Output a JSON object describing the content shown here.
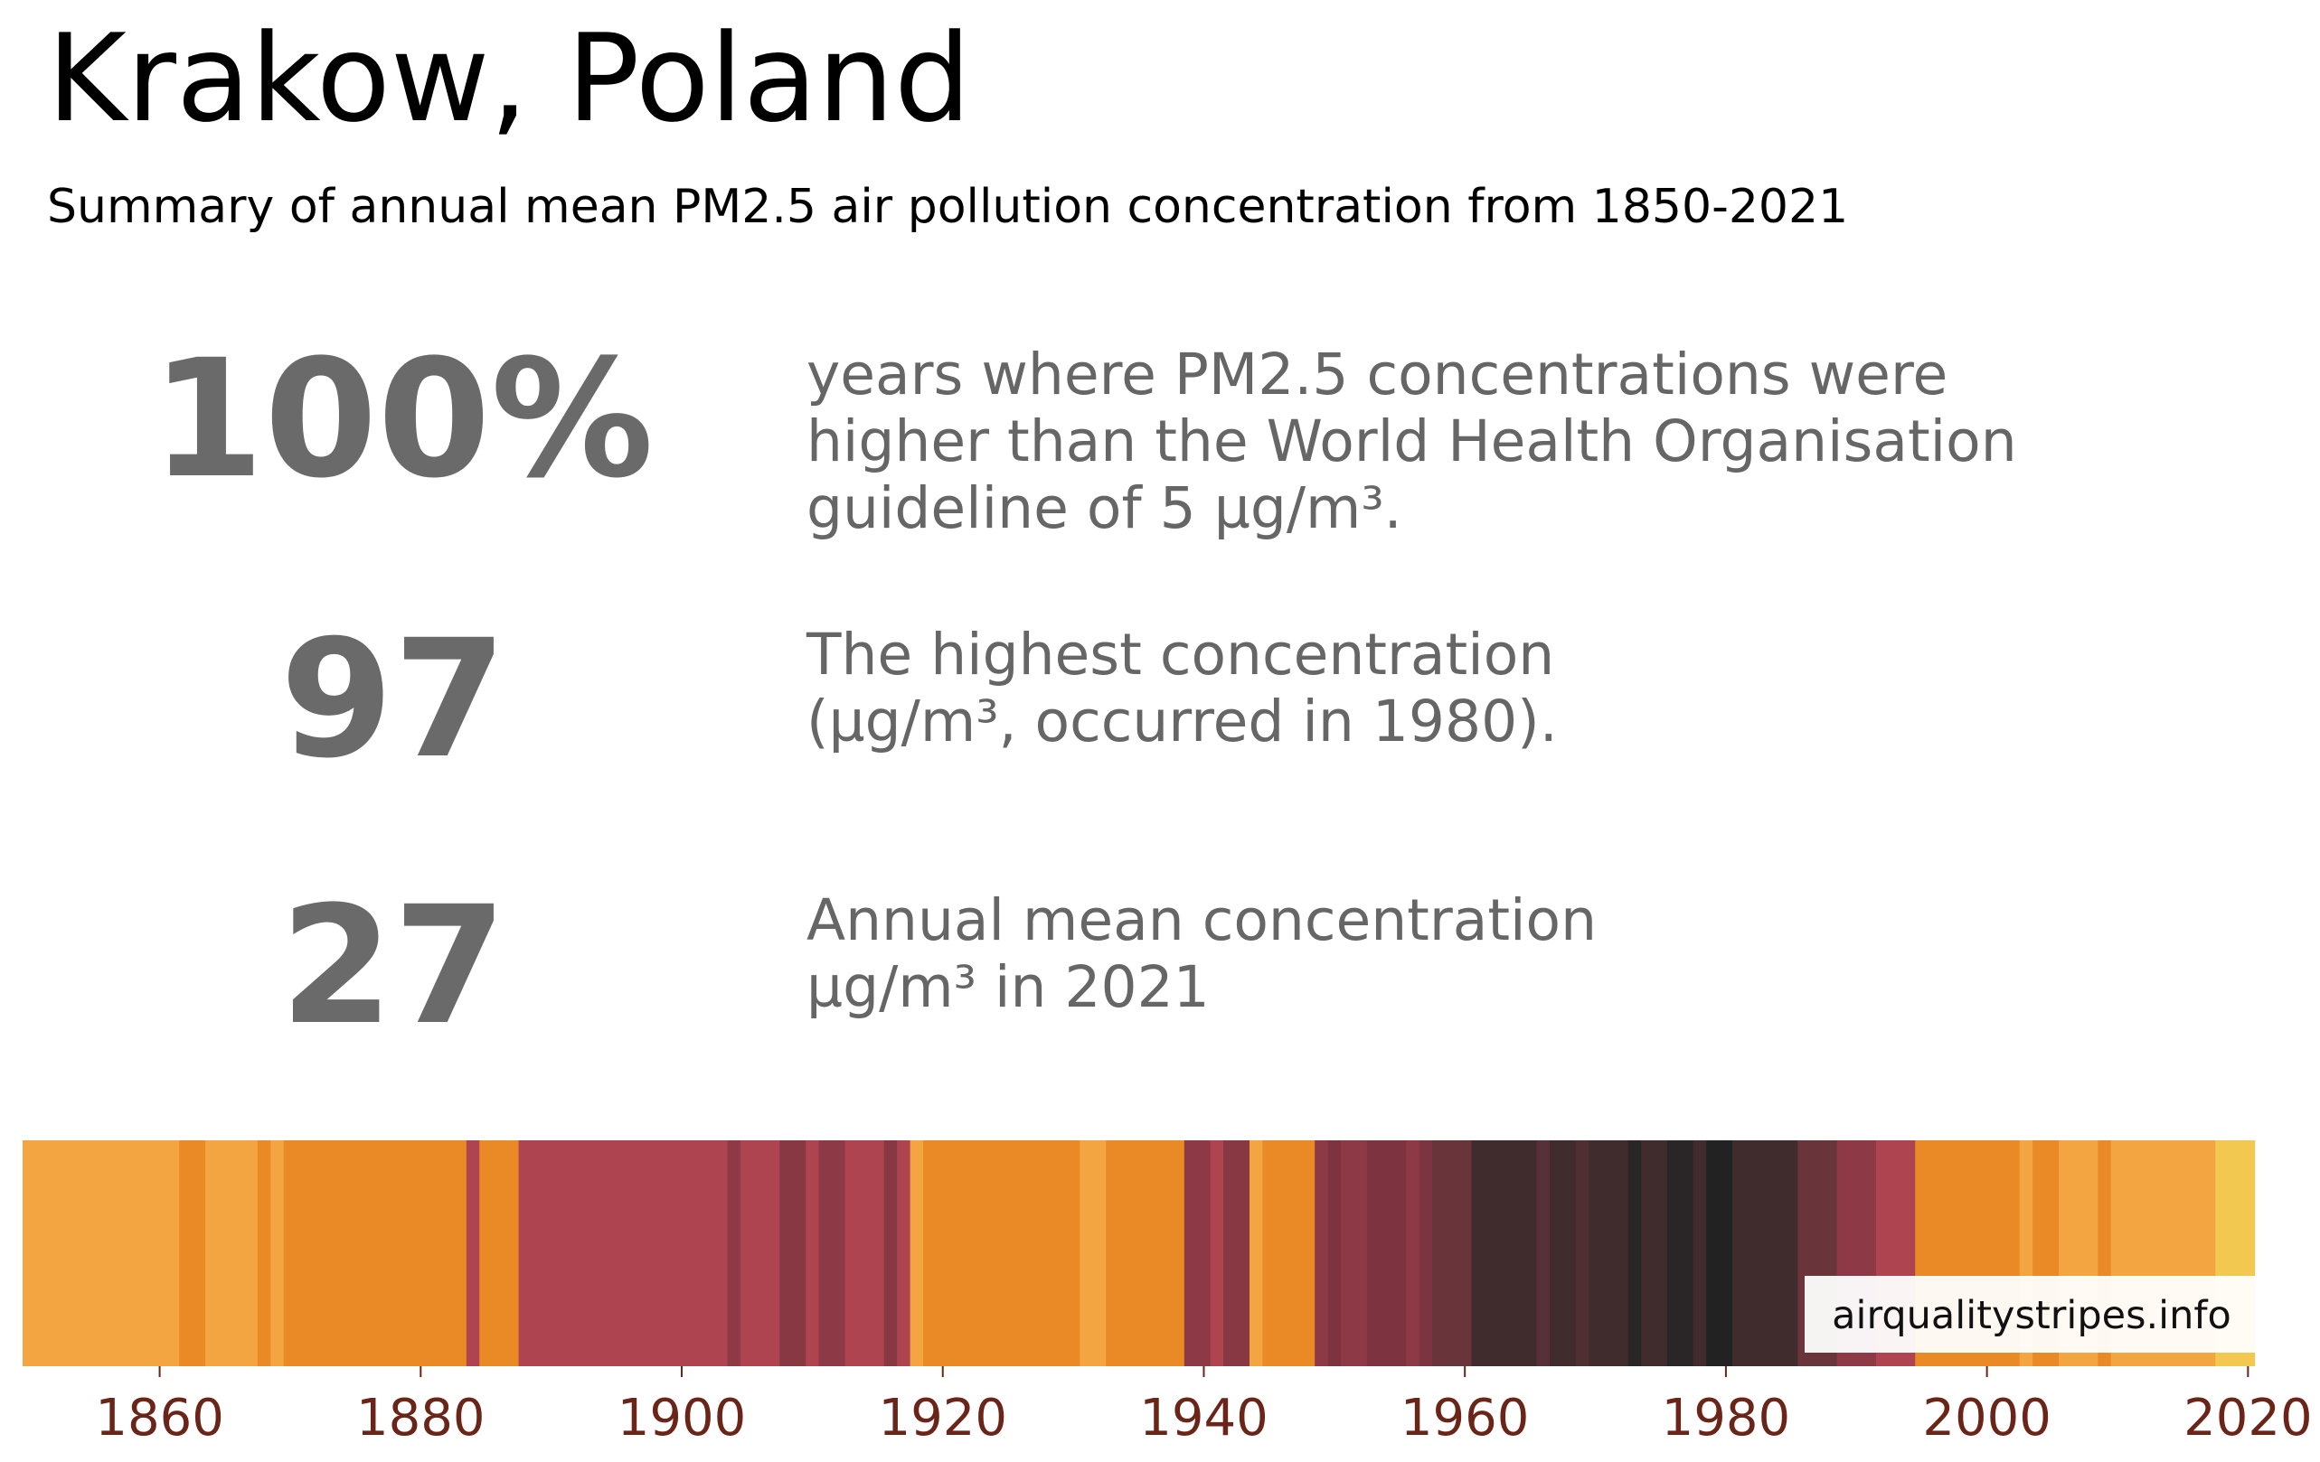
{
  "title": "Krakow, Poland",
  "subtitle": "Summary of annual mean PM2.5 air pollution concentration from 1850-2021",
  "stats": [
    {
      "value": "100%",
      "text": [
        "years where PM2.5 concentrations were",
        "higher than the World Health Organisation",
        "guideline of 5 µg/m³."
      ]
    },
    {
      "value": "97",
      "text": [
        "The highest concentration",
        "(µg/m³, occurred in 1980)."
      ]
    },
    {
      "value": "27",
      "text": [
        "Annual mean concentration",
        "µg/m³ in 2021"
      ]
    }
  ],
  "watermark": "airqualitystripes.info",
  "colors": {
    "stat_gray": "#6a6a6a",
    "tick_label": "#6b2418"
  },
  "chart_data": {
    "type": "heatmap",
    "description_units": "annual mean PM2.5 µg/m³",
    "x_range": [
      1850,
      2021
    ],
    "xticks": [
      1860,
      1880,
      1900,
      1920,
      1940,
      1960,
      1980,
      2000,
      2020
    ],
    "stripes": [
      {
        "start": 1850,
        "end": 1862,
        "color": "#f2a541"
      },
      {
        "start": 1862,
        "end": 1864,
        "color": "#e98a26"
      },
      {
        "start": 1864,
        "end": 1868,
        "color": "#f2a541"
      },
      {
        "start": 1868,
        "end": 1869,
        "color": "#e98a26"
      },
      {
        "start": 1869,
        "end": 1870,
        "color": "#f2a541"
      },
      {
        "start": 1870,
        "end": 1884,
        "color": "#e98a26"
      },
      {
        "start": 1884,
        "end": 1885,
        "color": "#ad4450"
      },
      {
        "start": 1885,
        "end": 1888,
        "color": "#e98a26"
      },
      {
        "start": 1888,
        "end": 1904,
        "color": "#ad4450"
      },
      {
        "start": 1904,
        "end": 1905,
        "color": "#8e3a46"
      },
      {
        "start": 1905,
        "end": 1908,
        "color": "#ad4450"
      },
      {
        "start": 1908,
        "end": 1910,
        "color": "#873843"
      },
      {
        "start": 1910,
        "end": 1911,
        "color": "#ad4450"
      },
      {
        "start": 1911,
        "end": 1913,
        "color": "#8e3a46"
      },
      {
        "start": 1913,
        "end": 1916,
        "color": "#ad4450"
      },
      {
        "start": 1916,
        "end": 1917,
        "color": "#873843"
      },
      {
        "start": 1917,
        "end": 1918,
        "color": "#ad4450"
      },
      {
        "start": 1918,
        "end": 1919,
        "color": "#f2a541"
      },
      {
        "start": 1919,
        "end": 1931,
        "color": "#e98a26"
      },
      {
        "start": 1931,
        "end": 1933,
        "color": "#f2a541"
      },
      {
        "start": 1933,
        "end": 1939,
        "color": "#e98a26"
      },
      {
        "start": 1939,
        "end": 1941,
        "color": "#8e3a46"
      },
      {
        "start": 1941,
        "end": 1942,
        "color": "#ad4450"
      },
      {
        "start": 1942,
        "end": 1944,
        "color": "#873843"
      },
      {
        "start": 1944,
        "end": 1945,
        "color": "#f2a541"
      },
      {
        "start": 1945,
        "end": 1949,
        "color": "#e98a26"
      },
      {
        "start": 1949,
        "end": 1950,
        "color": "#8e3a46"
      },
      {
        "start": 1950,
        "end": 1951,
        "color": "#7e3340"
      },
      {
        "start": 1951,
        "end": 1953,
        "color": "#8e3a46"
      },
      {
        "start": 1953,
        "end": 1956,
        "color": "#7e3340"
      },
      {
        "start": 1956,
        "end": 1957,
        "color": "#8e3a46"
      },
      {
        "start": 1957,
        "end": 1958,
        "color": "#7e3340"
      },
      {
        "start": 1958,
        "end": 1961,
        "color": "#69353a"
      },
      {
        "start": 1961,
        "end": 1966,
        "color": "#402b2d"
      },
      {
        "start": 1966,
        "end": 1967,
        "color": "#57303a"
      },
      {
        "start": 1967,
        "end": 1969,
        "color": "#402b2d"
      },
      {
        "start": 1969,
        "end": 1970,
        "color": "#4f2f32"
      },
      {
        "start": 1970,
        "end": 1973,
        "color": "#402b2d"
      },
      {
        "start": 1973,
        "end": 1974,
        "color": "#2a2526"
      },
      {
        "start": 1974,
        "end": 1976,
        "color": "#402b2d"
      },
      {
        "start": 1976,
        "end": 1978,
        "color": "#2a2526"
      },
      {
        "start": 1978,
        "end": 1979,
        "color": "#402b2d"
      },
      {
        "start": 1979,
        "end": 1981,
        "color": "#232222"
      },
      {
        "start": 1981,
        "end": 1986,
        "color": "#402b2d"
      },
      {
        "start": 1986,
        "end": 1989,
        "color": "#69353a"
      },
      {
        "start": 1989,
        "end": 1992,
        "color": "#8e3a46"
      },
      {
        "start": 1992,
        "end": 1995,
        "color": "#ad4450"
      },
      {
        "start": 1995,
        "end": 2003,
        "color": "#e98a26"
      },
      {
        "start": 2003,
        "end": 2004,
        "color": "#f2a541"
      },
      {
        "start": 2004,
        "end": 2006,
        "color": "#e98a26"
      },
      {
        "start": 2006,
        "end": 2009,
        "color": "#f2a541"
      },
      {
        "start": 2009,
        "end": 2010,
        "color": "#e98a26"
      },
      {
        "start": 2010,
        "end": 2018,
        "color": "#f2a541"
      },
      {
        "start": 2018,
        "end": 2021,
        "color": "#f2c850"
      }
    ]
  }
}
